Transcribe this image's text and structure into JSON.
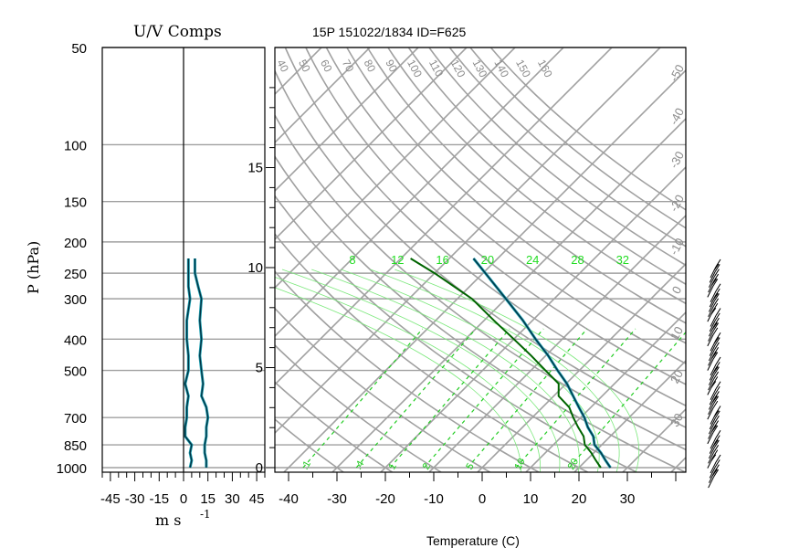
{
  "header": {
    "title": "15P 151022/1834 ID=F625"
  },
  "uv_panel": {
    "title": "U/V Comps",
    "xlabel": "m s",
    "xlabel_exp": "-1",
    "ylabel": "P (hPa)",
    "x_ticks": [
      "-45",
      "-30",
      "-15",
      "0",
      "15",
      "30",
      "45"
    ],
    "p_ticks": [
      "50",
      "100",
      "150",
      "200",
      "250",
      "300",
      "400",
      "500",
      "700",
      "850",
      "1000"
    ]
  },
  "skewt_panel": {
    "xlabel": "Temperature (C)",
    "t_ticks": [
      "-40",
      "-30",
      "-20",
      "-10",
      "0",
      "10",
      "20",
      "30"
    ],
    "height_ticks": [
      "0",
      "5",
      "10",
      "15"
    ],
    "dry_adiabat_labels": [
      "40",
      "50",
      "60",
      "70",
      "80",
      "90",
      "100",
      "110",
      "120",
      "130",
      "140",
      "150",
      "160"
    ],
    "moist_adiabat_labels": [
      "8",
      "12",
      "16",
      "20",
      "24",
      "28",
      "32"
    ],
    "mixing_ratio_labels": [
      ".1",
      ".4",
      "1",
      "2",
      "5",
      "10",
      "20"
    ],
    "right_isotherm_labels": [
      "-50",
      "-40",
      "-30",
      "-20",
      "-10",
      "0",
      "10",
      "20",
      "30"
    ]
  },
  "colors": {
    "grid": "#a0a0a0",
    "axis": "#000000",
    "temperature": "#003344",
    "dewpoint": "#006400",
    "trace_highlight": "#1e9fb0",
    "adiabat_label": "#8c8c8c",
    "moist_label": "#22dd22",
    "mixing_ratio": "#22cc22"
  },
  "chart_data": [
    {
      "type": "line",
      "title": "U/V Comps",
      "xlabel": "m s-1",
      "ylabel": "P (hPa)",
      "xlim": [
        -50,
        50
      ],
      "ylim": [
        1000,
        50
      ],
      "series": [
        {
          "name": "U",
          "p": [
            1000,
            950,
            900,
            850,
            800,
            750,
            700,
            650,
            600,
            550,
            500,
            450,
            400,
            350,
            300,
            275,
            250,
            225
          ],
          "values": [
            4,
            5,
            4,
            5,
            1,
            1,
            2,
            2,
            3,
            1,
            3,
            3,
            2,
            2,
            4,
            3,
            3,
            3
          ]
        },
        {
          "name": "V",
          "p": [
            1000,
            950,
            900,
            850,
            800,
            750,
            700,
            650,
            600,
            550,
            500,
            450,
            400,
            350,
            300,
            275,
            250,
            225
          ],
          "values": [
            14,
            14,
            13,
            13,
            14,
            14,
            15,
            14,
            11,
            12,
            11,
            10,
            11,
            10,
            11,
            9,
            7,
            7
          ]
        }
      ]
    },
    {
      "type": "line",
      "title": "15P 151022/1834 ID=F625",
      "xlabel": "Temperature (C)",
      "ylabel": "P (hPa)",
      "xlim": [
        -40,
        40
      ],
      "ylim": [
        1000,
        50
      ],
      "series": [
        {
          "name": "Temperature",
          "p": [
            1000,
            950,
            900,
            850,
            800,
            750,
            700,
            650,
            600,
            550,
            500,
            450,
            400,
            350,
            300,
            250,
            225
          ],
          "values": [
            26.5,
            24,
            21.5,
            18.5,
            16.5,
            13.5,
            10.8,
            7.5,
            4,
            0.2,
            -4.5,
            -9.5,
            -15.5,
            -22,
            -30,
            -39.5,
            -45
          ]
        },
        {
          "name": "Dewpoint",
          "p": [
            1000,
            950,
            900,
            850,
            800,
            750,
            700,
            650,
            600,
            550,
            500,
            450,
            400,
            350,
            300,
            250,
            225
          ],
          "values": [
            24.5,
            22,
            19.5,
            16.5,
            14.5,
            11.5,
            8.5,
            5.5,
            1,
            -1.5,
            -7,
            -13,
            -20,
            -28,
            -37,
            -50,
            -58
          ]
        }
      ]
    }
  ]
}
